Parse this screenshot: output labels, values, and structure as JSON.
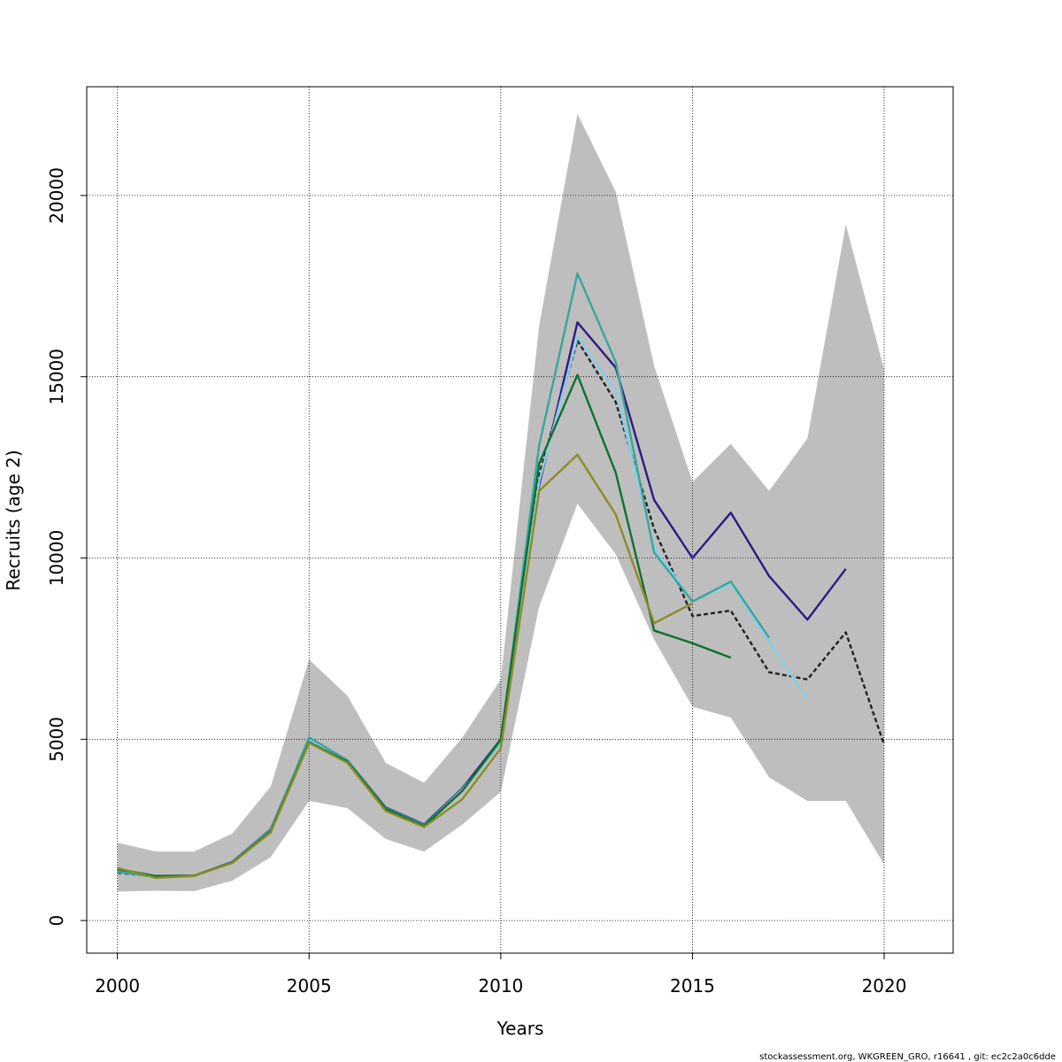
{
  "chart_data": {
    "type": "line",
    "xlabel": "Years",
    "ylabel": "Recruits (age 2)",
    "xlim": [
      1999.2,
      2021.8
    ],
    "ylim": [
      -900,
      23000
    ],
    "x_ticks": [
      2000,
      2005,
      2010,
      2015,
      2020
    ],
    "y_ticks": [
      0,
      5000,
      10000,
      15000,
      20000
    ],
    "x_tick_labels": [
      "2000",
      "2005",
      "2010",
      "2015",
      "2020"
    ],
    "y_tick_labels": [
      "0",
      "5000",
      "10000",
      "15000",
      "20000"
    ],
    "grid": true,
    "confidence_band": {
      "color": "#bebebe",
      "x": [
        2000,
        2001,
        2002,
        2003,
        2004,
        2005,
        2006,
        2007,
        2008,
        2009,
        2010,
        2011,
        2012,
        2013,
        2014,
        2015,
        2016,
        2017,
        2018,
        2019,
        2020
      ],
      "lower": [
        800,
        820,
        810,
        1100,
        1750,
        3300,
        3100,
        2250,
        1900,
        2650,
        3550,
        8650,
        11500,
        10100,
        7750,
        5900,
        5600,
        3950,
        3300,
        3300,
        1550
      ],
      "upper": [
        2150,
        1900,
        1900,
        2400,
        3700,
        7200,
        6200,
        4350,
        3800,
        5050,
        6650,
        16400,
        22250,
        20100,
        15300,
        12100,
        13150,
        11850,
        13300,
        19200,
        15200
      ]
    },
    "series": [
      {
        "color": "#222222",
        "dashed": true,
        "x": [
          2000,
          2001,
          2002,
          2003,
          2004,
          2005,
          2006,
          2007,
          2008,
          2009,
          2010,
          2011,
          2012,
          2013,
          2014,
          2015,
          2016,
          2017,
          2018,
          2019,
          2020
        ],
        "values": [
          1320,
          1210,
          1230,
          1600,
          2500,
          4950,
          4400,
          3100,
          2600,
          3600,
          4950,
          12300,
          16000,
          14300,
          10800,
          8400,
          8550,
          6850,
          6650,
          7950,
          4850
        ]
      },
      {
        "color": "#2e1a82",
        "dashed": false,
        "x": [
          2000,
          2001,
          2002,
          2003,
          2004,
          2005,
          2006,
          2007,
          2008,
          2009,
          2010,
          2011,
          2012,
          2013,
          2014,
          2015,
          2016,
          2017,
          2018,
          2019
        ],
        "values": [
          1350,
          1200,
          1230,
          1620,
          2520,
          5000,
          4420,
          3120,
          2650,
          3650,
          5000,
          12000,
          16500,
          15250,
          11600,
          10000,
          11250,
          9500,
          8300,
          9700
        ]
      },
      {
        "color": "#87ceeb",
        "dashed": false,
        "x": [
          2000,
          2001,
          2002,
          2003,
          2004,
          2005,
          2006,
          2007,
          2008,
          2009,
          2010,
          2011,
          2012,
          2013,
          2014,
          2015,
          2016,
          2017,
          2018
        ],
        "values": [
          1340,
          1200,
          1230,
          1610,
          2500,
          4980,
          4400,
          3100,
          2620,
          3620,
          4900,
          12100,
          16100,
          14600,
          10300,
          8800,
          9300,
          7700,
          6100
        ]
      },
      {
        "color": "#3aa59a",
        "dashed": false,
        "x": [
          2000,
          2001,
          2002,
          2003,
          2004,
          2005,
          2006,
          2007,
          2008,
          2009,
          2010,
          2011,
          2012,
          2013,
          2014,
          2015,
          2016,
          2017
        ],
        "values": [
          1350,
          1200,
          1230,
          1610,
          2480,
          5050,
          4420,
          3100,
          2630,
          3580,
          4950,
          13100,
          17850,
          15400,
          10150,
          8800,
          9350,
          7800
        ]
      },
      {
        "color": "#0f7030",
        "dashed": false,
        "x": [
          2000,
          2001,
          2002,
          2003,
          2004,
          2005,
          2006,
          2007,
          2008,
          2009,
          2010,
          2011,
          2012,
          2013,
          2014,
          2015,
          2016
        ],
        "values": [
          1420,
          1230,
          1240,
          1600,
          2460,
          4920,
          4380,
          3080,
          2600,
          3580,
          5000,
          12600,
          15050,
          12350,
          8000,
          7650,
          7250
        ]
      },
      {
        "color": "#8c8c25",
        "dashed": false,
        "x": [
          2000,
          2001,
          2002,
          2003,
          2004,
          2005,
          2006,
          2007,
          2008,
          2009,
          2010,
          2011,
          2012,
          2013,
          2014,
          2015
        ],
        "values": [
          1450,
          1180,
          1230,
          1590,
          2430,
          4900,
          4350,
          3020,
          2580,
          3350,
          4750,
          11850,
          12850,
          11200,
          8200,
          8750
        ]
      }
    ]
  },
  "footer": {
    "text": "stockassessment.org, WKGREEN_GRO, r16641 , git: ec2c2a0c6dde"
  }
}
